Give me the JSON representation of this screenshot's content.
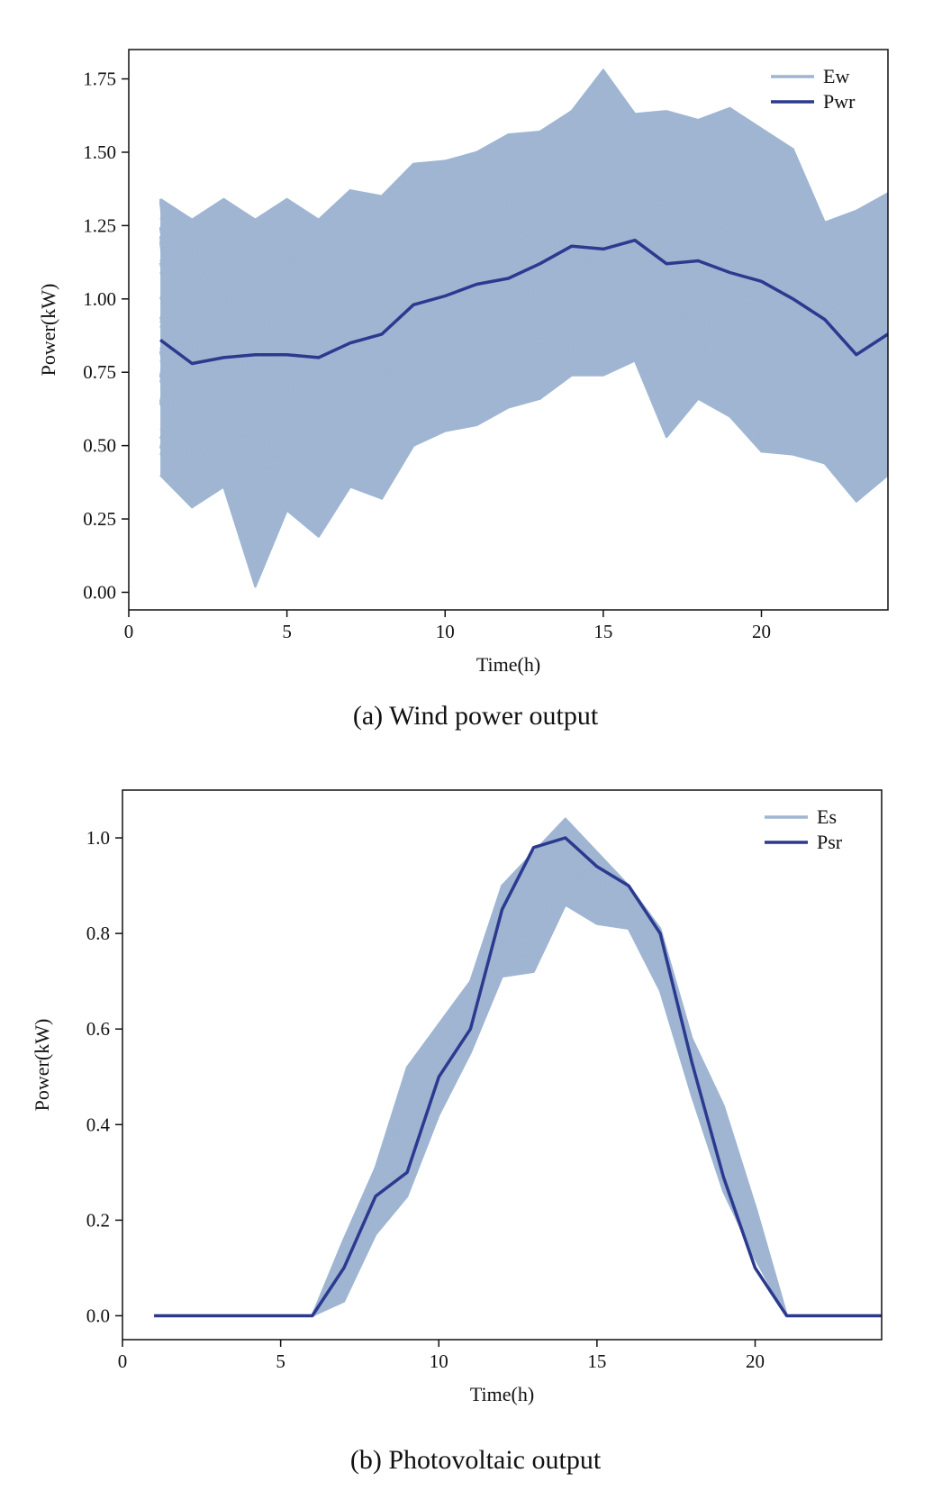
{
  "chart_data": [
    {
      "type": "line",
      "caption": "(a) Wind power output",
      "xlabel": "Time(h)",
      "ylabel": "Power(kW)",
      "xlim": [
        0,
        24
      ],
      "ylim": [
        -0.06,
        1.85
      ],
      "xticks": [
        0,
        5,
        10,
        15,
        20
      ],
      "yticks": [
        0.0,
        0.25,
        0.5,
        0.75,
        1.0,
        1.25,
        1.5,
        1.75
      ],
      "ytick_labels": [
        "0.00",
        "0.25",
        "0.50",
        "0.75",
        "1.00",
        "1.25",
        "1.50",
        "1.75"
      ],
      "legend_position": "top-right",
      "colors": {
        "scenarios": "#9fb5d2",
        "reference": "#2b3a8f"
      },
      "x": [
        1,
        2,
        3,
        4,
        5,
        6,
        7,
        8,
        9,
        10,
        11,
        12,
        13,
        14,
        15,
        16,
        17,
        18,
        19,
        20,
        21,
        22,
        23,
        24
      ],
      "series": [
        {
          "name": "Ew",
          "role": "scenario-band",
          "band_lower": [
            0.4,
            0.29,
            0.36,
            0.02,
            0.28,
            0.19,
            0.36,
            0.32,
            0.5,
            0.55,
            0.57,
            0.63,
            0.66,
            0.74,
            0.74,
            0.79,
            0.53,
            0.66,
            0.6,
            0.48,
            0.47,
            0.44,
            0.31,
            0.4
          ],
          "band_upper": [
            1.34,
            1.27,
            1.34,
            1.27,
            1.34,
            1.27,
            1.37,
            1.35,
            1.46,
            1.47,
            1.5,
            1.56,
            1.57,
            1.64,
            1.78,
            1.63,
            1.64,
            1.61,
            1.65,
            1.58,
            1.51,
            1.26,
            1.3,
            1.36
          ]
        },
        {
          "name": "Pwr",
          "role": "reference",
          "values": [
            0.86,
            0.78,
            0.8,
            0.81,
            0.81,
            0.8,
            0.85,
            0.88,
            0.98,
            1.01,
            1.05,
            1.07,
            1.12,
            1.18,
            1.17,
            1.2,
            1.12,
            1.13,
            1.09,
            1.06,
            1.0,
            0.93,
            0.81,
            0.88
          ]
        }
      ]
    },
    {
      "type": "line",
      "caption": "(b) Photovoltaic output",
      "xlabel": "Time(h)",
      "ylabel": "Power(kW)",
      "xlim": [
        0,
        24
      ],
      "ylim": [
        -0.05,
        1.1
      ],
      "xticks": [
        0,
        5,
        10,
        15,
        20
      ],
      "yticks": [
        0.0,
        0.2,
        0.4,
        0.6,
        0.8,
        1.0
      ],
      "ytick_labels": [
        "0.0",
        "0.2",
        "0.4",
        "0.6",
        "0.8",
        "1.0"
      ],
      "legend_position": "top-right",
      "colors": {
        "scenarios": "#9fb5d2",
        "reference": "#2b3a8f"
      },
      "x": [
        1,
        2,
        3,
        4,
        5,
        6,
        7,
        8,
        9,
        10,
        11,
        12,
        13,
        14,
        15,
        16,
        17,
        18,
        19,
        20,
        21,
        22,
        23,
        24
      ],
      "series": [
        {
          "name": "Es",
          "role": "scenario-band",
          "band_lower": [
            0,
            0,
            0,
            0,
            0,
            0,
            0.03,
            0.17,
            0.25,
            0.42,
            0.55,
            0.71,
            0.72,
            0.86,
            0.82,
            0.81,
            0.68,
            0.46,
            0.26,
            0.12,
            0,
            0,
            0,
            0
          ],
          "band_upper": [
            0,
            0,
            0,
            0,
            0,
            0,
            0.16,
            0.31,
            0.52,
            0.61,
            0.7,
            0.9,
            0.97,
            1.04,
            0.97,
            0.9,
            0.81,
            0.58,
            0.44,
            0.23,
            0,
            0,
            0,
            0
          ]
        },
        {
          "name": "Psr",
          "role": "reference",
          "values": [
            0,
            0,
            0,
            0,
            0,
            0,
            0.1,
            0.25,
            0.3,
            0.5,
            0.6,
            0.85,
            0.98,
            1.0,
            0.94,
            0.9,
            0.8,
            0.53,
            0.29,
            0.1,
            0,
            0,
            0,
            0
          ]
        }
      ]
    }
  ]
}
